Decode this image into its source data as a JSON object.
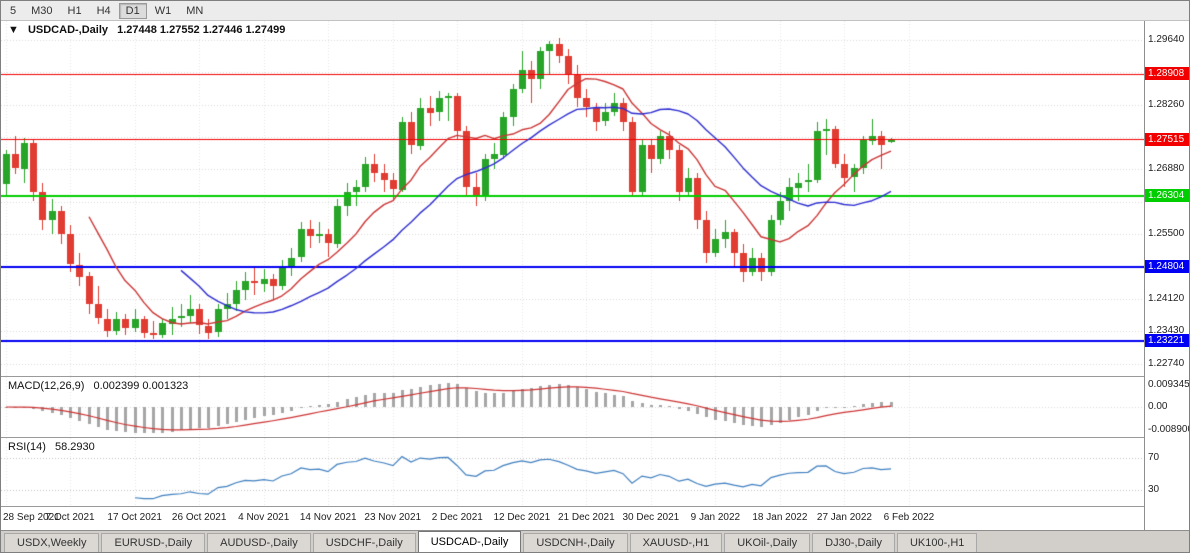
{
  "toolbar": {
    "timeframes": [
      {
        "label": "5",
        "active": false
      },
      {
        "label": "M30",
        "active": false
      },
      {
        "label": "H1",
        "active": false
      },
      {
        "label": "H4",
        "active": false
      },
      {
        "label": "D1",
        "active": true
      },
      {
        "label": "W1",
        "active": false
      },
      {
        "label": "MN",
        "active": false
      }
    ]
  },
  "chart_header": {
    "marker": "▼",
    "title": "USDCAD-,Daily",
    "values": "1.27448 1.27552 1.27446 1.27499"
  },
  "indicators": {
    "macd": {
      "name": "MACD(12,26,9)",
      "values": "0.002399 0.001323",
      "axis": {
        "top": "0.009345",
        "zero": "0.00",
        "bottom": "-0.008900"
      }
    },
    "rsi": {
      "name": "RSI(14)",
      "value": "58.2930",
      "levels": [
        70,
        30
      ]
    }
  },
  "price_axis": {
    "labels": [
      {
        "text": "1.29640",
        "value": 1.2964
      },
      {
        "text": "1.28260",
        "value": 1.2826
      },
      {
        "text": "1.26880",
        "value": 1.2688
      },
      {
        "text": "1.25500",
        "value": 1.255
      },
      {
        "text": "1.24120",
        "value": 1.2412
      },
      {
        "text": "1.23430",
        "value": 1.2343
      },
      {
        "text": "1.22740",
        "value": 1.2274
      }
    ]
  },
  "tabs": [
    {
      "label": "USDX,Weekly",
      "active": false
    },
    {
      "label": "EURUSD-,Daily",
      "active": false
    },
    {
      "label": "AUDUSD-,Daily",
      "active": false
    },
    {
      "label": "USDCHF-,Daily",
      "active": false
    },
    {
      "label": "USDCAD-,Daily",
      "active": true
    },
    {
      "label": "USDCNH-,Daily",
      "active": false
    },
    {
      "label": "XAUUSD-,H1",
      "active": false
    },
    {
      "label": "UKOil-,Daily",
      "active": false
    },
    {
      "label": "DJ30-,Daily",
      "active": false
    },
    {
      "label": "UK100-,H1",
      "active": false
    }
  ],
  "colors": {
    "up": "#28a428",
    "down": "#e03c32",
    "ma_fast": "#cc3535",
    "ma_slow": "#2d2dd0",
    "macd_hist": "#a6a6a6",
    "macd_signal": "#cc3333",
    "rsi_line": "#3f7fbf",
    "grid": "#d9d9d9",
    "vgrid": "#e6e6e6",
    "rsi_level": "#c0c0c0"
  },
  "chart_data": {
    "type": "candlestick",
    "title": "USDCAD-,Daily",
    "price_range": [
      1.2256,
      1.2996
    ],
    "slots": 124,
    "tick_step": 7,
    "dates": [
      "28 Sep 2021",
      "7 Oct 2021",
      "17 Oct 2021",
      "26 Oct 2021",
      "4 Nov 2021",
      "14 Nov 2021",
      "23 Nov 2021",
      "2 Dec 2021",
      "12 Dec 2021",
      "21 Dec 2021",
      "30 Dec 2021",
      "9 Jan 2022",
      "18 Jan 2022",
      "27 Jan 2022",
      "6 Feb 2022"
    ],
    "grid_prices": [
      1.2964,
      1.2895,
      1.2826,
      1.2757,
      1.2688,
      1.2619,
      1.255,
      1.2481,
      1.2412,
      1.2343,
      1.2274
    ],
    "levels": [
      {
        "price": 1.28908,
        "label": "1.28908",
        "color": "#f20000",
        "width": 1
      },
      {
        "price": 1.27515,
        "label": "1.27515",
        "color": "#f20000",
        "width": 1
      },
      {
        "price": 1.26304,
        "label": "1.26304",
        "color": "#00ce00",
        "width": 2
      },
      {
        "price": 1.24804,
        "label": "1.24804",
        "color": "#0000f2",
        "width": 2
      },
      {
        "price": 1.23221,
        "label": "1.23221",
        "color": "#0000f2",
        "width": 2
      }
    ],
    "moving_averages": [
      {
        "type": "sma",
        "period": 10,
        "color": "#cc3535"
      },
      {
        "type": "sma",
        "period": 20,
        "color": "#2d2dd0"
      }
    ],
    "macd_params": {
      "fast": 12,
      "slow": 26,
      "signal": 9,
      "scale": 0.0105
    },
    "rsi_params": {
      "period": 14,
      "range": [
        10,
        95
      ]
    },
    "ohlc": [
      [
        1.2655,
        1.273,
        1.263,
        1.272
      ],
      [
        1.272,
        1.276,
        1.268,
        1.269
      ],
      [
        1.269,
        1.2755,
        1.266,
        1.2745
      ],
      [
        1.2745,
        1.275,
        1.262,
        1.264
      ],
      [
        1.264,
        1.266,
        1.256,
        1.258
      ],
      [
        1.258,
        1.2625,
        1.255,
        1.26
      ],
      [
        1.26,
        1.261,
        1.253,
        1.255
      ],
      [
        1.255,
        1.257,
        1.247,
        1.2485
      ],
      [
        1.2485,
        1.251,
        1.244,
        1.246
      ],
      [
        1.246,
        1.247,
        1.238,
        1.24
      ],
      [
        1.24,
        1.244,
        1.236,
        1.237
      ],
      [
        1.237,
        1.239,
        1.233,
        1.2345
      ],
      [
        1.2345,
        1.2385,
        1.2335,
        1.237
      ],
      [
        1.237,
        1.238,
        1.2335,
        1.235
      ],
      [
        1.235,
        1.239,
        1.234,
        1.237
      ],
      [
        1.237,
        1.2375,
        1.2328,
        1.234
      ],
      [
        1.234,
        1.2365,
        1.2326,
        1.2335
      ],
      [
        1.2335,
        1.237,
        1.233,
        1.236
      ],
      [
        1.236,
        1.2395,
        1.2335,
        1.237
      ],
      [
        1.237,
        1.24,
        1.235,
        1.2375
      ],
      [
        1.2375,
        1.242,
        1.236,
        1.239
      ],
      [
        1.239,
        1.24,
        1.2335,
        1.2355
      ],
      [
        1.2355,
        1.237,
        1.2328,
        1.234
      ],
      [
        1.234,
        1.24,
        1.233,
        1.239
      ],
      [
        1.239,
        1.2425,
        1.237,
        1.24
      ],
      [
        1.24,
        1.245,
        1.2385,
        1.243
      ],
      [
        1.243,
        1.247,
        1.241,
        1.245
      ],
      [
        1.245,
        1.248,
        1.242,
        1.2445
      ],
      [
        1.2445,
        1.2475,
        1.2425,
        1.2455
      ],
      [
        1.2455,
        1.2465,
        1.241,
        1.244
      ],
      [
        1.244,
        1.2495,
        1.243,
        1.248
      ],
      [
        1.248,
        1.252,
        1.246,
        1.25
      ],
      [
        1.25,
        1.2575,
        1.249,
        1.256
      ],
      [
        1.256,
        1.258,
        1.252,
        1.2545
      ],
      [
        1.2545,
        1.2575,
        1.253,
        1.255
      ],
      [
        1.255,
        1.256,
        1.25,
        1.253
      ],
      [
        1.253,
        1.2625,
        1.252,
        1.261
      ],
      [
        1.261,
        1.266,
        1.259,
        1.264
      ],
      [
        1.264,
        1.2665,
        1.261,
        1.265
      ],
      [
        1.265,
        1.2715,
        1.264,
        1.27
      ],
      [
        1.27,
        1.272,
        1.266,
        1.268
      ],
      [
        1.268,
        1.27,
        1.264,
        1.2665
      ],
      [
        1.2665,
        1.268,
        1.262,
        1.2645
      ],
      [
        1.2645,
        1.28,
        1.264,
        1.279
      ],
      [
        1.279,
        1.281,
        1.272,
        1.274
      ],
      [
        1.274,
        1.284,
        1.273,
        1.282
      ],
      [
        1.282,
        1.2845,
        1.278,
        1.281
      ],
      [
        1.281,
        1.2855,
        1.279,
        1.284
      ],
      [
        1.284,
        1.285,
        1.279,
        1.2845
      ],
      [
        1.2845,
        1.285,
        1.275,
        1.277
      ],
      [
        1.277,
        1.278,
        1.263,
        1.265
      ],
      [
        1.265,
        1.268,
        1.261,
        1.263
      ],
      [
        1.263,
        1.272,
        1.262,
        1.271
      ],
      [
        1.271,
        1.2745,
        1.269,
        1.272
      ],
      [
        1.272,
        1.281,
        1.271,
        1.28
      ],
      [
        1.28,
        1.287,
        1.278,
        1.286
      ],
      [
        1.286,
        1.294,
        1.285,
        1.29
      ],
      [
        1.29,
        1.292,
        1.283,
        1.288
      ],
      [
        1.288,
        1.295,
        1.286,
        1.294
      ],
      [
        1.294,
        1.2962,
        1.289,
        1.2955
      ],
      [
        1.2955,
        1.2968,
        1.2915,
        1.293
      ],
      [
        1.293,
        1.2945,
        1.287,
        1.289
      ],
      [
        1.289,
        1.291,
        1.282,
        1.284
      ],
      [
        1.284,
        1.286,
        1.28,
        1.282
      ],
      [
        1.282,
        1.283,
        1.277,
        1.279
      ],
      [
        1.279,
        1.283,
        1.278,
        1.281
      ],
      [
        1.281,
        1.285,
        1.28,
        1.283
      ],
      [
        1.283,
        1.284,
        1.277,
        1.279
      ],
      [
        1.279,
        1.28,
        1.263,
        1.264
      ],
      [
        1.264,
        1.275,
        1.263,
        1.274
      ],
      [
        1.274,
        1.275,
        1.268,
        1.271
      ],
      [
        1.271,
        1.277,
        1.27,
        1.276
      ],
      [
        1.276,
        1.277,
        1.271,
        1.273
      ],
      [
        1.273,
        1.274,
        1.262,
        1.264
      ],
      [
        1.264,
        1.269,
        1.263,
        1.267
      ],
      [
        1.267,
        1.268,
        1.256,
        1.258
      ],
      [
        1.258,
        1.26,
        1.249,
        1.251
      ],
      [
        1.251,
        1.256,
        1.25,
        1.254
      ],
      [
        1.254,
        1.258,
        1.252,
        1.2555
      ],
      [
        1.2555,
        1.256,
        1.248,
        1.251
      ],
      [
        1.251,
        1.253,
        1.245,
        1.247
      ],
      [
        1.247,
        1.252,
        1.246,
        1.25
      ],
      [
        1.25,
        1.251,
        1.245,
        1.247
      ],
      [
        1.247,
        1.259,
        1.246,
        1.258
      ],
      [
        1.258,
        1.264,
        1.257,
        1.262
      ],
      [
        1.262,
        1.267,
        1.26,
        1.265
      ],
      [
        1.265,
        1.268,
        1.262,
        1.266
      ],
      [
        1.266,
        1.27,
        1.264,
        1.2665
      ],
      [
        1.2665,
        1.279,
        1.266,
        1.277
      ],
      [
        1.277,
        1.2796,
        1.272,
        1.2775
      ],
      [
        1.2775,
        1.278,
        1.269,
        1.27
      ],
      [
        1.27,
        1.272,
        1.265,
        1.267
      ],
      [
        1.267,
        1.27,
        1.264,
        1.269
      ],
      [
        1.269,
        1.276,
        1.268,
        1.275
      ],
      [
        1.275,
        1.2795,
        1.274,
        1.276
      ],
      [
        1.276,
        1.277,
        1.269,
        1.274
      ],
      [
        1.27448,
        1.27552,
        1.27446,
        1.27499
      ]
    ]
  }
}
